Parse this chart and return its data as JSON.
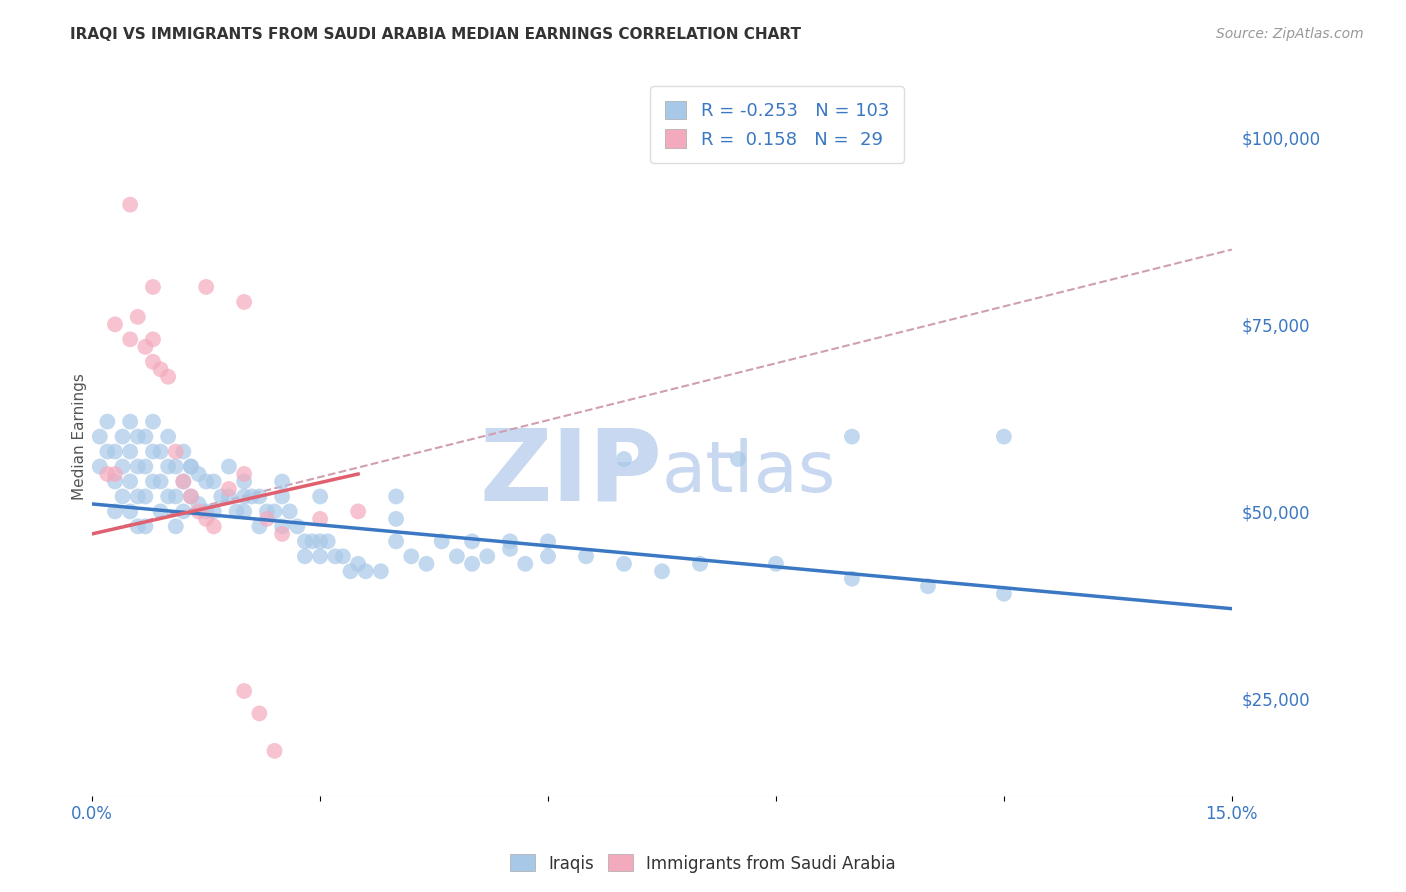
{
  "title": "IRAQI VS IMMIGRANTS FROM SAUDI ARABIA MEDIAN EARNINGS CORRELATION CHART",
  "source": "Source: ZipAtlas.com",
  "ylabel": "Median Earnings",
  "xlim": [
    0.0,
    0.15
  ],
  "ylim": [
    12000,
    108000
  ],
  "xticks": [
    0.0,
    0.03,
    0.06,
    0.09,
    0.12,
    0.15
  ],
  "xtick_labels": [
    "0.0%",
    "",
    "",
    "",
    "",
    "15.0%"
  ],
  "yticks_right": [
    25000,
    50000,
    75000,
    100000
  ],
  "background_color": "#ffffff",
  "grid_color": "#d8d8d8",
  "blue_color": "#A8C8E8",
  "pink_color": "#F4AABD",
  "blue_line_color": "#3B78C3",
  "pink_line_color": "#E06070",
  "dashed_line_color": "#D0A0B0",
  "watermark_color_zip": "#C8D8F0",
  "watermark_color_atlas": "#C8D8F0",
  "legend_R1": "-0.253",
  "legend_N1": "103",
  "legend_R2": "0.158",
  "legend_N2": "29",
  "legend_label1": "Iraqis",
  "legend_label2": "Immigrants from Saudi Arabia",
  "blue_dots_x": [
    0.001,
    0.001,
    0.002,
    0.002,
    0.003,
    0.003,
    0.003,
    0.004,
    0.004,
    0.004,
    0.005,
    0.005,
    0.005,
    0.005,
    0.006,
    0.006,
    0.006,
    0.006,
    0.007,
    0.007,
    0.007,
    0.007,
    0.008,
    0.008,
    0.008,
    0.009,
    0.009,
    0.009,
    0.01,
    0.01,
    0.01,
    0.011,
    0.011,
    0.011,
    0.012,
    0.012,
    0.012,
    0.013,
    0.013,
    0.014,
    0.014,
    0.015,
    0.015,
    0.016,
    0.016,
    0.017,
    0.018,
    0.018,
    0.019,
    0.02,
    0.02,
    0.021,
    0.022,
    0.022,
    0.023,
    0.024,
    0.025,
    0.025,
    0.026,
    0.027,
    0.028,
    0.028,
    0.029,
    0.03,
    0.03,
    0.031,
    0.032,
    0.033,
    0.034,
    0.035,
    0.036,
    0.038,
    0.04,
    0.042,
    0.044,
    0.046,
    0.048,
    0.05,
    0.052,
    0.055,
    0.057,
    0.06,
    0.065,
    0.07,
    0.075,
    0.08,
    0.09,
    0.1,
    0.11,
    0.12,
    0.013,
    0.02,
    0.025,
    0.03,
    0.04,
    0.055,
    0.06,
    0.07,
    0.085,
    0.1,
    0.04,
    0.05,
    0.12
  ],
  "blue_dots_y": [
    60000,
    56000,
    62000,
    58000,
    58000,
    54000,
    50000,
    60000,
    56000,
    52000,
    62000,
    58000,
    54000,
    50000,
    60000,
    56000,
    52000,
    48000,
    60000,
    56000,
    52000,
    48000,
    62000,
    58000,
    54000,
    58000,
    54000,
    50000,
    60000,
    56000,
    52000,
    56000,
    52000,
    48000,
    58000,
    54000,
    50000,
    56000,
    52000,
    55000,
    51000,
    54000,
    50000,
    54000,
    50000,
    52000,
    56000,
    52000,
    50000,
    54000,
    50000,
    52000,
    52000,
    48000,
    50000,
    50000,
    52000,
    48000,
    50000,
    48000,
    46000,
    44000,
    46000,
    46000,
    44000,
    46000,
    44000,
    44000,
    42000,
    43000,
    42000,
    42000,
    46000,
    44000,
    43000,
    46000,
    44000,
    46000,
    44000,
    46000,
    43000,
    44000,
    44000,
    43000,
    42000,
    43000,
    43000,
    41000,
    40000,
    39000,
    56000,
    52000,
    54000,
    52000,
    52000,
    45000,
    46000,
    57000,
    57000,
    60000,
    49000,
    43000,
    60000
  ],
  "pink_dots_x": [
    0.002,
    0.003,
    0.005,
    0.006,
    0.007,
    0.008,
    0.008,
    0.009,
    0.01,
    0.011,
    0.012,
    0.013,
    0.014,
    0.015,
    0.016,
    0.018,
    0.02,
    0.022,
    0.023,
    0.024,
    0.025,
    0.005,
    0.008,
    0.015,
    0.02,
    0.03,
    0.035,
    0.003,
    0.02
  ],
  "pink_dots_y": [
    55000,
    75000,
    73000,
    76000,
    72000,
    73000,
    70000,
    69000,
    68000,
    58000,
    54000,
    52000,
    50000,
    49000,
    48000,
    53000,
    26000,
    23000,
    49000,
    18000,
    47000,
    91000,
    80000,
    80000,
    55000,
    49000,
    50000,
    55000,
    78000
  ],
  "blue_trend_x": [
    0.0,
    0.15
  ],
  "blue_trend_y": [
    51000,
    37000
  ],
  "pink_trend_x": [
    0.0,
    0.035
  ],
  "pink_trend_y": [
    47000,
    55000
  ],
  "dash_trend_x": [
    0.0,
    0.15
  ],
  "dash_trend_y": [
    47000,
    85000
  ]
}
